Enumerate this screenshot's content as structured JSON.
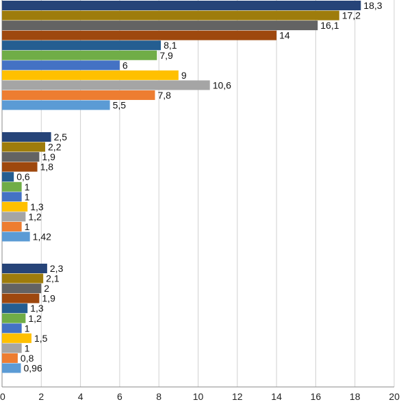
{
  "chart_data": {
    "type": "bar",
    "orientation": "horizontal",
    "xlim": [
      0,
      20
    ],
    "x_ticks": [
      "0",
      "2",
      "4",
      "6",
      "8",
      "10",
      "12",
      "14",
      "16",
      "18",
      "20"
    ],
    "grid": "vertical",
    "series_colors": [
      "#264478",
      "#9E7C0C",
      "#636363",
      "#9E480E",
      "#255E91",
      "#70AD47",
      "#4472C4",
      "#FFC000",
      "#A5A5A5",
      "#ED7D31",
      "#5B9BD5"
    ],
    "groups": [
      {
        "values": [
          18.3,
          17.2,
          16.1,
          14,
          8.1,
          7.9,
          6,
          9,
          10.6,
          7.8,
          5.5
        ],
        "labels": [
          "18,3",
          "17,2",
          "16,1",
          "14",
          "8,1",
          "7,9",
          "6",
          "9",
          "10,6",
          "7,8",
          "5,5"
        ]
      },
      {
        "values": [
          2.5,
          2.2,
          1.9,
          1.8,
          0.6,
          1,
          1,
          1.3,
          1.2,
          1,
          1.42
        ],
        "labels": [
          "2,5",
          "2,2",
          "1,9",
          "1,8",
          "0,6",
          "1",
          "1",
          "1,3",
          "1,2",
          "1",
          "1,42"
        ]
      },
      {
        "values": [
          2.3,
          2.1,
          2,
          1.9,
          1.3,
          1.2,
          1,
          1.5,
          1,
          0.8,
          0.96
        ],
        "labels": [
          "2,3",
          "2,1",
          "2",
          "1,9",
          "1,3",
          "1,2",
          "1",
          "1,5",
          "1",
          "0,8",
          "0,96"
        ]
      }
    ]
  }
}
